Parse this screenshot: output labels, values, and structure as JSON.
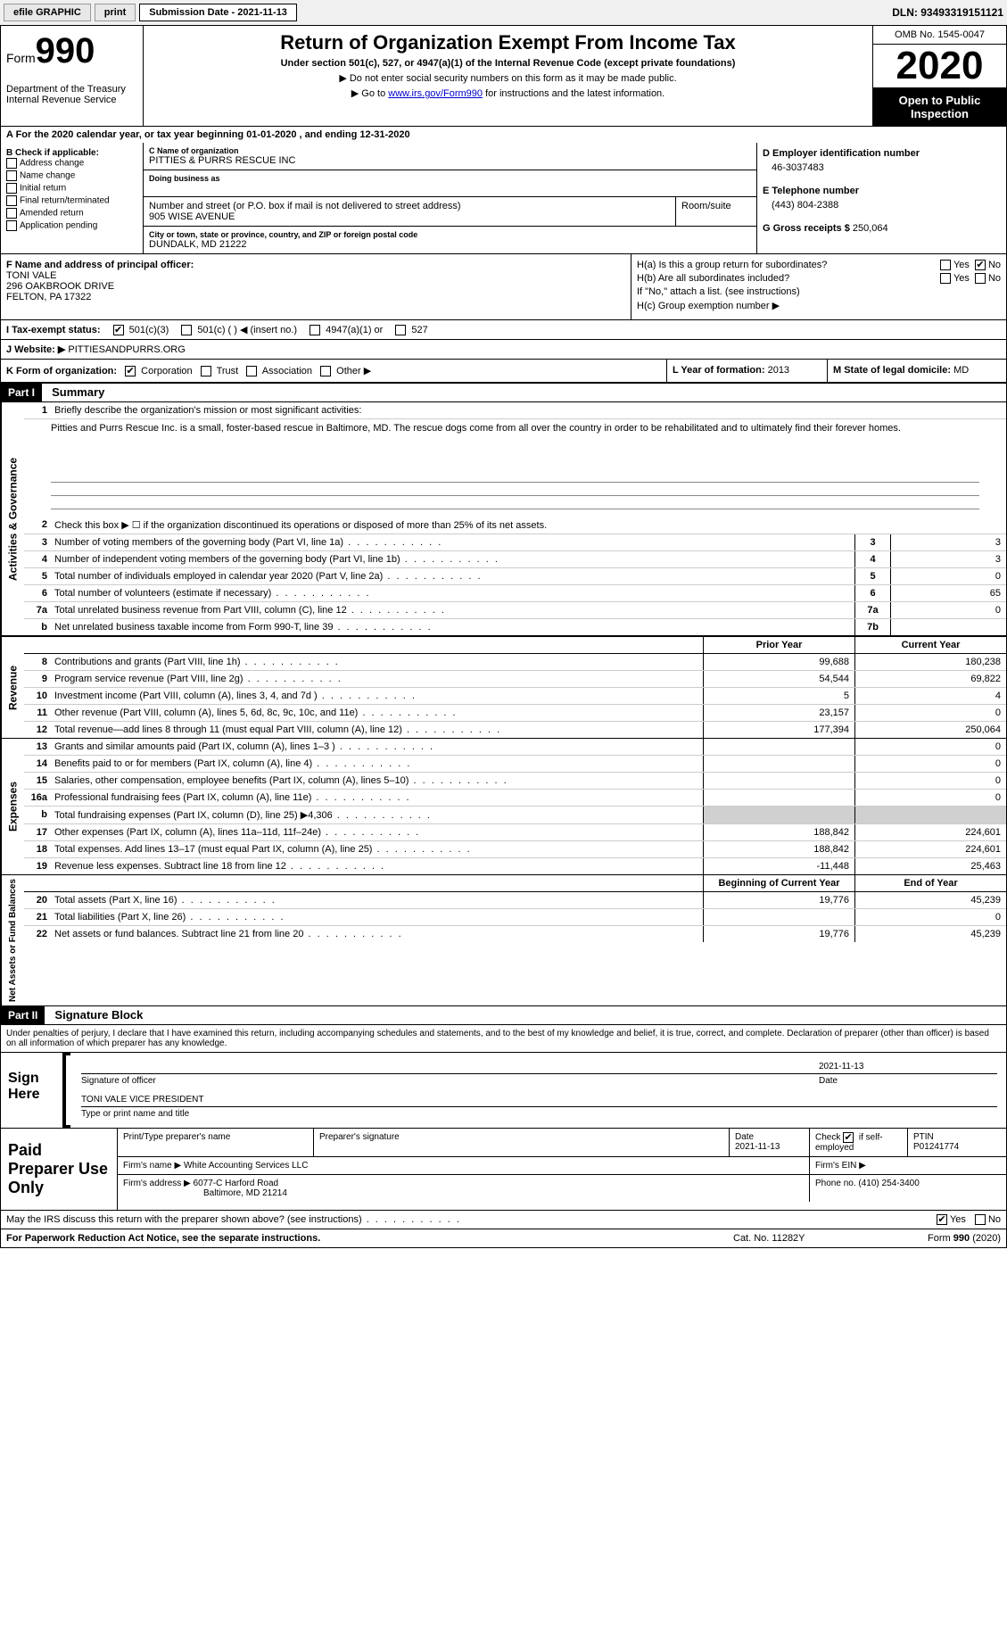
{
  "top_bar": {
    "efile_label": "efile GRAPHIC",
    "print_label": "print",
    "submission_date_label": "Submission Date - 2021-11-13",
    "dln": "DLN: 93493319151121"
  },
  "header": {
    "form_word": "Form",
    "form_num": "990",
    "dept": "Department of the Treasury",
    "irs": "Internal Revenue Service",
    "title": "Return of Organization Exempt From Income Tax",
    "under": "Under section 501(c), 527, or 4947(a)(1) of the Internal Revenue Code (except private foundations)",
    "note1": "▶ Do not enter social security numbers on this form as it may be made public.",
    "note2_pre": "▶ Go to ",
    "note2_link": "www.irs.gov/Form990",
    "note2_post": " for instructions and the latest information.",
    "omb": "OMB No. 1545-0047",
    "year": "2020",
    "inspect": "Open to Public Inspection"
  },
  "period": {
    "text": "A For the 2020 calendar year, or tax year beginning 01-01-2020   , and ending 12-31-2020"
  },
  "section_b": {
    "heading": "B Check if applicable:",
    "items": [
      "Address change",
      "Name change",
      "Initial return",
      "Final return/terminated",
      "Amended return",
      "Application pending"
    ]
  },
  "section_c": {
    "name_lbl": "C Name of organization",
    "name": "PITTIES & PURRS RESCUE INC",
    "dba_lbl": "Doing business as",
    "dba": "",
    "addr_lbl": "Number and street (or P.O. box if mail is not delivered to street address)",
    "room_lbl": "Room/suite",
    "addr": "905 WISE AVENUE",
    "city_lbl": "City or town, state or province, country, and ZIP or foreign postal code",
    "city": "DUNDALK, MD  21222"
  },
  "section_d": {
    "ein_lbl": "D Employer identification number",
    "ein": "46-3037483",
    "phone_lbl": "E Telephone number",
    "phone": "(443) 804-2388",
    "gross_lbl": "G Gross receipts $",
    "gross": "250,064"
  },
  "section_f": {
    "lbl": "F Name and address of principal officer:",
    "name": "TONI VALE",
    "addr1": "296 OAKBROOK DRIVE",
    "addr2": "FELTON, PA  17322"
  },
  "section_h": {
    "ha": "H(a)  Is this a group return for subordinates?",
    "hb": "H(b)  Are all subordinates included?",
    "hb_note": "If \"No,\" attach a list. (see instructions)",
    "hc": "H(c)  Group exemption number ▶",
    "yes": "Yes",
    "no": "No"
  },
  "tax_status": {
    "lbl": "I   Tax-exempt status:",
    "o1": "501(c)(3)",
    "o2": "501(c) (  ) ◀ (insert no.)",
    "o3": "4947(a)(1) or",
    "o4": "527"
  },
  "website": {
    "lbl": "J   Website: ▶",
    "val": "PITTIESANDPURRS.ORG"
  },
  "k_org": {
    "lbl": "K Form of organization:",
    "o1": "Corporation",
    "o2": "Trust",
    "o3": "Association",
    "o4": "Other ▶",
    "l_lbl": "L Year of formation:",
    "l_val": "2013",
    "m_lbl": "M State of legal domicile:",
    "m_val": "MD"
  },
  "part1": {
    "label": "Part I",
    "title": "Summary",
    "side_gov": "Activities & Governance",
    "side_rev": "Revenue",
    "side_exp": "Expenses",
    "side_net": "Net Assets or Fund Balances",
    "l1_lbl": "1",
    "l1_txt": "Briefly describe the organization's mission or most significant activities:",
    "mission": "Pitties and Purrs Rescue Inc. is a small, foster-based rescue in Baltimore, MD. The rescue dogs come from all over the country in order to be rehabilitated and to ultimately find their forever homes.",
    "l2_lbl": "2",
    "l2_txt": "Check this box ▶ ☐  if the organization discontinued its operations or disposed of more than 25% of its net assets.",
    "lines_single": [
      {
        "n": "3",
        "d": "Number of voting members of the governing body (Part VI, line 1a)",
        "b": "3",
        "v": "3"
      },
      {
        "n": "4",
        "d": "Number of independent voting members of the governing body (Part VI, line 1b)",
        "b": "4",
        "v": "3"
      },
      {
        "n": "5",
        "d": "Total number of individuals employed in calendar year 2020 (Part V, line 2a)",
        "b": "5",
        "v": "0"
      },
      {
        "n": "6",
        "d": "Total number of volunteers (estimate if necessary)",
        "b": "6",
        "v": "65"
      },
      {
        "n": "7a",
        "d": "Total unrelated business revenue from Part VIII, column (C), line 12",
        "b": "7a",
        "v": "0"
      },
      {
        "n": "b",
        "d": "Net unrelated business taxable income from Form 990-T, line 39",
        "b": "7b",
        "v": ""
      }
    ],
    "col_prior": "Prior Year",
    "col_curr": "Current Year",
    "lines_rev": [
      {
        "n": "8",
        "d": "Contributions and grants (Part VIII, line 1h)",
        "p": "99,688",
        "c": "180,238"
      },
      {
        "n": "9",
        "d": "Program service revenue (Part VIII, line 2g)",
        "p": "54,544",
        "c": "69,822"
      },
      {
        "n": "10",
        "d": "Investment income (Part VIII, column (A), lines 3, 4, and 7d )",
        "p": "5",
        "c": "4"
      },
      {
        "n": "11",
        "d": "Other revenue (Part VIII, column (A), lines 5, 6d, 8c, 9c, 10c, and 11e)",
        "p": "23,157",
        "c": "0"
      },
      {
        "n": "12",
        "d": "Total revenue—add lines 8 through 11 (must equal Part VIII, column (A), line 12)",
        "p": "177,394",
        "c": "250,064"
      }
    ],
    "lines_exp": [
      {
        "n": "13",
        "d": "Grants and similar amounts paid (Part IX, column (A), lines 1–3 )",
        "p": "",
        "c": "0"
      },
      {
        "n": "14",
        "d": "Benefits paid to or for members (Part IX, column (A), line 4)",
        "p": "",
        "c": "0"
      },
      {
        "n": "15",
        "d": "Salaries, other compensation, employee benefits (Part IX, column (A), lines 5–10)",
        "p": "",
        "c": "0"
      },
      {
        "n": "16a",
        "d": "Professional fundraising fees (Part IX, column (A), line 11e)",
        "p": "",
        "c": "0"
      },
      {
        "n": "b",
        "d": "Total fundraising expenses (Part IX, column (D), line 25) ▶4,306",
        "p": "shade",
        "c": "shade"
      },
      {
        "n": "17",
        "d": "Other expenses (Part IX, column (A), lines 11a–11d, 11f–24e)",
        "p": "188,842",
        "c": "224,601"
      },
      {
        "n": "18",
        "d": "Total expenses. Add lines 13–17 (must equal Part IX, column (A), line 25)",
        "p": "188,842",
        "c": "224,601"
      },
      {
        "n": "19",
        "d": "Revenue less expenses. Subtract line 18 from line 12",
        "p": "-11,448",
        "c": "25,463"
      }
    ],
    "col_beg": "Beginning of Current Year",
    "col_end": "End of Year",
    "lines_net": [
      {
        "n": "20",
        "d": "Total assets (Part X, line 16)",
        "p": "19,776",
        "c": "45,239"
      },
      {
        "n": "21",
        "d": "Total liabilities (Part X, line 26)",
        "p": "",
        "c": "0"
      },
      {
        "n": "22",
        "d": "Net assets or fund balances. Subtract line 21 from line 20",
        "p": "19,776",
        "c": "45,239"
      }
    ]
  },
  "part2": {
    "label": "Part II",
    "title": "Signature Block",
    "penalties": "Under penalties of perjury, I declare that I have examined this return, including accompanying schedules and statements, and to the best of my knowledge and belief, it is true, correct, and complete. Declaration of preparer (other than officer) is based on all information of which preparer has any knowledge."
  },
  "sign": {
    "here": "Sign Here",
    "sig_lbl": "Signature of officer",
    "date_lbl": "Date",
    "date": "2021-11-13",
    "name": "TONI VALE  VICE PRESIDENT",
    "type_lbl": "Type or print name and title"
  },
  "preparer": {
    "lbl": "Paid Preparer Use Only",
    "name_lbl": "Print/Type preparer's name",
    "sig_lbl": "Preparer's signature",
    "date_lbl": "Date",
    "date": "2021-11-13",
    "check_lbl": "Check ☑ if self-employed",
    "ptin_lbl": "PTIN",
    "ptin": "P01241774",
    "firm_name_lbl": "Firm's name    ▶",
    "firm_name": "White Accounting Services LLC",
    "firm_ein_lbl": "Firm's EIN ▶",
    "firm_addr_lbl": "Firm's address ▶",
    "firm_addr1": "6077-C Harford Road",
    "firm_addr2": "Baltimore, MD  21214",
    "phone_lbl": "Phone no.",
    "phone": "(410) 254-3400"
  },
  "footer": {
    "discuss": "May the IRS discuss this return with the preparer shown above? (see instructions)",
    "yes": "Yes",
    "no": "No",
    "pra": "For Paperwork Reduction Act Notice, see the separate instructions.",
    "cat": "Cat. No. 11282Y",
    "form": "Form 990 (2020)"
  }
}
